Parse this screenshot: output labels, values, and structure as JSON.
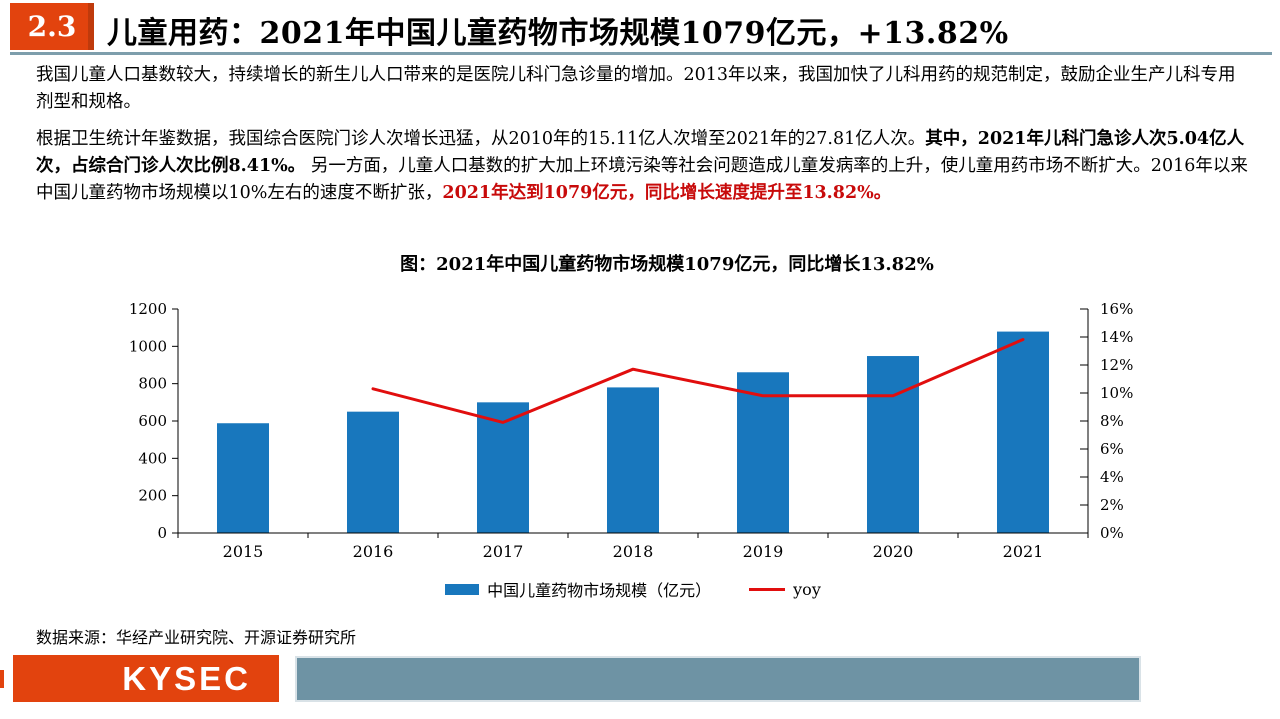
{
  "header": {
    "section_number": "2.3",
    "title": "儿童用药：2021年中国儿童药物市场规模1079亿元，+13.82%"
  },
  "body": {
    "paragraph1": "我国儿童人口基数较大，持续增长的新生儿人口带来的是医院儿科门急诊量的增加。2013年以来，我国加快了儿科用药的规范制定，鼓励企业生产儿科专用剂型和规格。",
    "paragraph2": {
      "part1_normal": "根据卫生统计年鉴数据，我国综合医院门诊人次增长迅猛，从2010年的15.11亿人次增至2021年的27.81亿人次。",
      "part2_bold": "其中，2021年儿科门急诊人次5.04亿人次，占综合门诊人次比例8.41%。",
      "part3_normal": "  另一方面，儿童人口基数的扩大加上环境污染等社会问题造成儿童发病率的上升，使儿童用药市场不断扩大。2016年以来中国儿童药物市场规模以10%左右的速度不断扩张，",
      "part4_red_bold": "2021年达到1079亿元，同比增长速度提升至13.82%。"
    }
  },
  "chart": {
    "title": "图：2021年中国儿童药物市场规模1079亿元，同比增长13.82%",
    "legend": {
      "bar_label": "中国儿童药物市场规模（亿元）",
      "line_label": "yoy"
    }
  },
  "chart_data": {
    "type": "bar",
    "subtype": "bar-line-combo",
    "title": "图：2021年中国儿童药物市场规模1079亿元，同比增长13.82%",
    "categories": [
      "2015",
      "2016",
      "2017",
      "2018",
      "2019",
      "2020",
      "2021"
    ],
    "series": [
      {
        "name": "中国儿童药物市场规模（亿元）",
        "type": "bar",
        "axis": "left",
        "color": "#1877BD",
        "values": [
          588,
          650,
          700,
          780,
          861,
          948,
          1079
        ]
      },
      {
        "name": "yoy",
        "type": "line",
        "axis": "right",
        "color": "#E10E0E",
        "values": [
          null,
          10.3,
          7.9,
          11.7,
          9.8,
          9.8,
          13.82
        ]
      }
    ],
    "left_axis": {
      "min": 0,
      "max": 1200,
      "step": 200,
      "labels": [
        "0",
        "200",
        "400",
        "600",
        "800",
        "1000",
        "1200"
      ]
    },
    "right_axis": {
      "min": 0,
      "max": 16,
      "step": 2,
      "labels": [
        "0%",
        "2%",
        "4%",
        "6%",
        "8%",
        "10%",
        "12%",
        "14%",
        "16%"
      ]
    },
    "grid": false,
    "legend_position": "bottom"
  },
  "source": "数据来源：华经产业研究院、开源证券研究所",
  "footer": {
    "logo_text": "KYSEC"
  },
  "colors": {
    "accent_red": "#E2430E",
    "chart_bar_blue": "#1877BD",
    "chart_line_red": "#E10E0E",
    "text_red": "#C80A0A",
    "footer_gray_blue": "#6E93A4",
    "header_rule": "#7E9EAC"
  }
}
